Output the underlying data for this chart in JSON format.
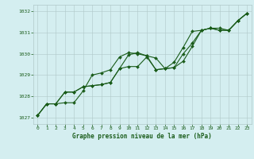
{
  "title": "Graphe pression niveau de la mer (hPa)",
  "background_color": "#d4eef0",
  "grid_color": "#b0c8c8",
  "line_color": "#1a5c1a",
  "marker_color": "#1a5c1a",
  "xlim": [
    -0.5,
    23.5
  ],
  "ylim": [
    1026.7,
    1032.3
  ],
  "yticks": [
    1027,
    1028,
    1029,
    1030,
    1031,
    1032
  ],
  "xticks": [
    0,
    1,
    2,
    3,
    4,
    5,
    6,
    7,
    8,
    9,
    10,
    11,
    12,
    13,
    14,
    15,
    16,
    17,
    18,
    19,
    20,
    21,
    22,
    23
  ],
  "series": [
    [
      1027.1,
      1027.65,
      1027.65,
      1027.7,
      1027.7,
      1028.25,
      1029.0,
      1029.1,
      1029.25,
      1029.85,
      1030.05,
      1030.0,
      1029.9,
      1029.8,
      1029.3,
      1029.35,
      1029.65,
      1030.35,
      1031.1,
      1031.2,
      1031.2,
      1031.1,
      1031.55,
      1031.9
    ],
    [
      1027.1,
      1027.65,
      1027.65,
      1028.2,
      1028.2,
      1028.45,
      1028.5,
      1028.55,
      1028.65,
      1029.3,
      1029.95,
      1030.05,
      1029.9,
      1029.25,
      1029.3,
      1029.35,
      1030.0,
      1030.5,
      1031.1,
      1031.2,
      1031.1,
      1031.1,
      1031.55,
      1031.9
    ],
    [
      1027.1,
      1027.65,
      1027.65,
      1028.2,
      1028.2,
      1028.45,
      1028.5,
      1028.55,
      1028.65,
      1029.3,
      1029.4,
      1029.4,
      1029.85,
      1029.25,
      1029.3,
      1029.6,
      1030.3,
      1031.05,
      1031.1,
      1031.2,
      1031.1,
      1031.1,
      1031.55,
      1031.9
    ]
  ],
  "figsize": [
    3.2,
    2.0
  ],
  "dpi": 100,
  "xlabel_fontsize": 5.5,
  "tick_fontsize": 4.5,
  "linewidth": 0.8,
  "markersize": 2.0
}
